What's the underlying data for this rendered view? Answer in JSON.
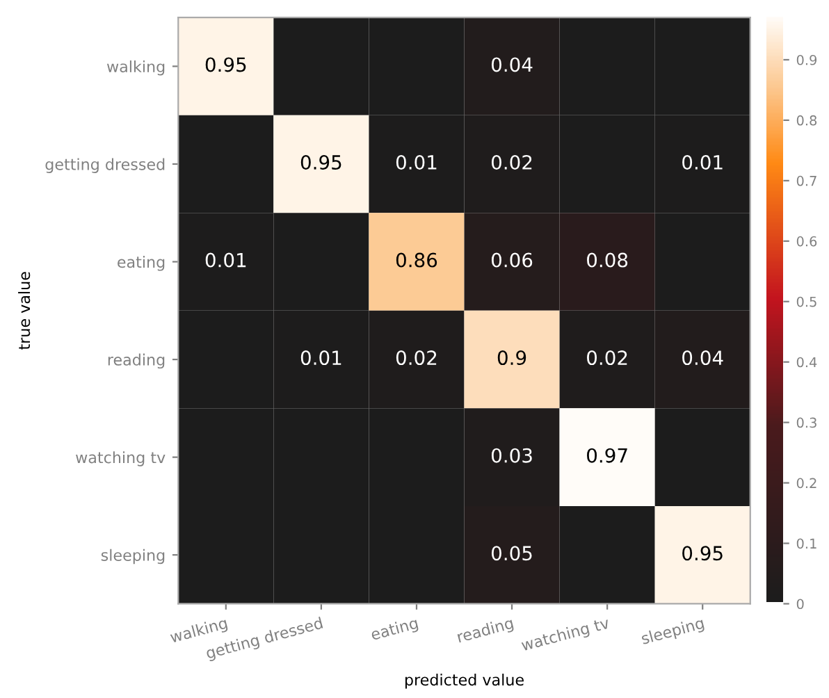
{
  "chart_data": {
    "type": "heatmap",
    "xlabel": "predicted value",
    "ylabel": "true value",
    "categories": [
      "walking",
      "getting dressed",
      "eating",
      "reading",
      "watching tv",
      "sleeping"
    ],
    "y_categories": [
      "walking",
      "getting dressed",
      "eating",
      "reading",
      "watching tv",
      "sleeping"
    ],
    "cells": [
      [
        0.95,
        0,
        0,
        0.04,
        0,
        0
      ],
      [
        0,
        0.95,
        0.01,
        0.02,
        0,
        0.01
      ],
      [
        0.01,
        0,
        0.86,
        0.06,
        0.08,
        0
      ],
      [
        0,
        0.01,
        0.02,
        0.9,
        0.02,
        0.04
      ],
      [
        0,
        0,
        0,
        0.03,
        0.97,
        0
      ],
      [
        0,
        0,
        0,
        0.05,
        0,
        0.95
      ]
    ],
    "cell_labels": [
      [
        "0.95",
        null,
        null,
        "0.04",
        null,
        null
      ],
      [
        null,
        "0.95",
        "0.01",
        "0.02",
        null,
        "0.01"
      ],
      [
        "0.01",
        null,
        "0.86",
        "0.06",
        "0.08",
        null
      ],
      [
        null,
        "0.01",
        "0.02",
        "0.9",
        "0.02",
        "0.04"
      ],
      [
        null,
        null,
        null,
        "0.03",
        "0.97",
        null
      ],
      [
        null,
        null,
        null,
        "0.05",
        null,
        "0.95"
      ]
    ],
    "clim": [
      0,
      0.97
    ],
    "cticks": [
      0,
      0.1,
      0.2,
      0.3,
      0.4,
      0.5,
      0.6,
      0.7,
      0.8,
      0.9
    ],
    "grid": false
  }
}
